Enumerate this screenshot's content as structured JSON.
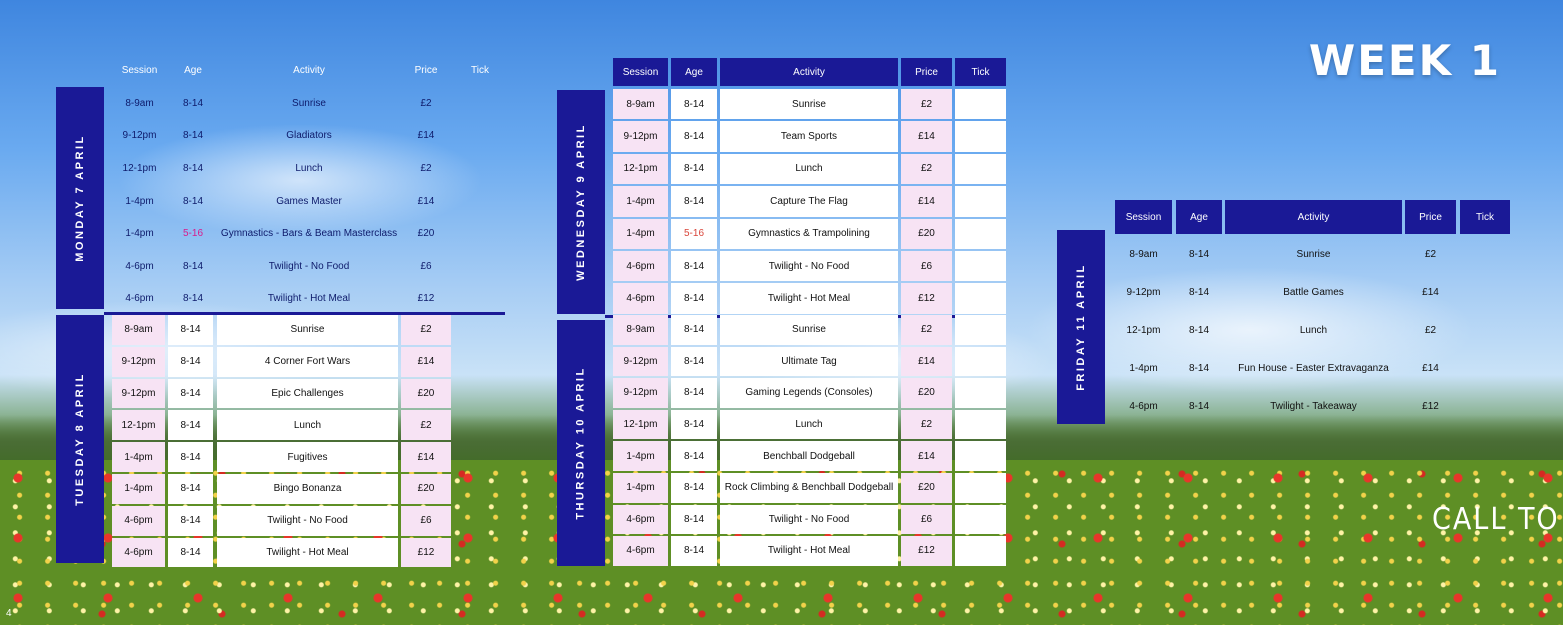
{
  "week_title": "WEEK 1",
  "call_to": "CALL TO",
  "page_number": "4",
  "headers": {
    "session": "Session",
    "age": "Age",
    "activity": "Activity",
    "price": "Price",
    "tick": "Tick"
  },
  "days": {
    "monday": "MONDAY 7 APRIL",
    "tuesday": "TUESDAY 8 APRIL",
    "wednesday": "WEDNESDAY 9 APRIL",
    "thursday": "THURSDAY 10 APRIL",
    "friday": "FRIDAY 11 APRIL"
  },
  "monday": [
    {
      "session": "8-9am",
      "age": "8-14",
      "activity": "Sunrise",
      "price": "£2"
    },
    {
      "session": "9-12pm",
      "age": "8-14",
      "activity": "Gladiators",
      "price": "£14"
    },
    {
      "session": "12-1pm",
      "age": "8-14",
      "activity": "Lunch",
      "price": "£2"
    },
    {
      "session": "1-4pm",
      "age": "8-14",
      "activity": "Games Master",
      "price": "£14"
    },
    {
      "session": "1-4pm",
      "age": "5-16",
      "activity": "Gymnastics - Bars & Beam Masterclass",
      "price": "£20"
    },
    {
      "session": "4-6pm",
      "age": "8-14",
      "activity": "Twilight - No Food",
      "price": "£6"
    },
    {
      "session": "4-6pm",
      "age": "8-14",
      "activity": "Twilight - Hot Meal",
      "price": "£12"
    }
  ],
  "tuesday": [
    {
      "session": "8-9am",
      "age": "8-14",
      "activity": "Sunrise",
      "price": "£2"
    },
    {
      "session": "9-12pm",
      "age": "8-14",
      "activity": "4 Corner Fort Wars",
      "price": "£14"
    },
    {
      "session": "9-12pm",
      "age": "8-14",
      "activity": "Epic Challenges",
      "price": "£20"
    },
    {
      "session": "12-1pm",
      "age": "8-14",
      "activity": "Lunch",
      "price": "£2"
    },
    {
      "session": "1-4pm",
      "age": "8-14",
      "activity": "Fugitives",
      "price": "£14"
    },
    {
      "session": "1-4pm",
      "age": "8-14",
      "activity": "Bingo Bonanza",
      "price": "£20"
    },
    {
      "session": "4-6pm",
      "age": "8-14",
      "activity": "Twilight - No Food",
      "price": "£6"
    },
    {
      "session": "4-6pm",
      "age": "8-14",
      "activity": "Twilight - Hot Meal",
      "price": "£12"
    }
  ],
  "wednesday": [
    {
      "session": "8-9am",
      "age": "8-14",
      "activity": "Sunrise",
      "price": "£2"
    },
    {
      "session": "9-12pm",
      "age": "8-14",
      "activity": "Team Sports",
      "price": "£14"
    },
    {
      "session": "12-1pm",
      "age": "8-14",
      "activity": "Lunch",
      "price": "£2"
    },
    {
      "session": "1-4pm",
      "age": "8-14",
      "activity": "Capture The Flag",
      "price": "£14"
    },
    {
      "session": "1-4pm",
      "age": "5-16",
      "activity": "Gymnastics & Trampolining",
      "price": "£20"
    },
    {
      "session": "4-6pm",
      "age": "8-14",
      "activity": "Twilight - No Food",
      "price": "£6"
    },
    {
      "session": "4-6pm",
      "age": "8-14",
      "activity": "Twilight - Hot Meal",
      "price": "£12"
    }
  ],
  "thursday": [
    {
      "session": "8-9am",
      "age": "8-14",
      "activity": "Sunrise",
      "price": "£2"
    },
    {
      "session": "9-12pm",
      "age": "8-14",
      "activity": "Ultimate Tag",
      "price": "£14"
    },
    {
      "session": "9-12pm",
      "age": "8-14",
      "activity": "Gaming Legends (Consoles)",
      "price": "£20"
    },
    {
      "session": "12-1pm",
      "age": "8-14",
      "activity": "Lunch",
      "price": "£2"
    },
    {
      "session": "1-4pm",
      "age": "8-14",
      "activity": "Benchball Dodgeball",
      "price": "£14"
    },
    {
      "session": "1-4pm",
      "age": "8-14",
      "activity": "Rock Climbing & Benchball Dodgeball",
      "price": "£20"
    },
    {
      "session": "4-6pm",
      "age": "8-14",
      "activity": "Twilight - No Food",
      "price": "£6"
    },
    {
      "session": "4-6pm",
      "age": "8-14",
      "activity": "Twilight - Hot Meal",
      "price": "£12"
    }
  ],
  "friday": [
    {
      "session": "8-9am",
      "age": "8-14",
      "activity": "Sunrise",
      "price": "£2"
    },
    {
      "session": "9-12pm",
      "age": "8-14",
      "activity": "Battle Games",
      "price": "£14"
    },
    {
      "session": "12-1pm",
      "age": "8-14",
      "activity": "Lunch",
      "price": "£2"
    },
    {
      "session": "1-4pm",
      "age": "8-14",
      "activity": "Fun House - Easter Extravaganza",
      "price": "£14"
    },
    {
      "session": "4-6pm",
      "age": "8-14",
      "activity": "Twilight - Takeaway",
      "price": "£12"
    }
  ],
  "colors": {
    "navy": "#1a1996",
    "pink_cell": "#f7e3f4",
    "highlight_age": "#d81b8c"
  }
}
